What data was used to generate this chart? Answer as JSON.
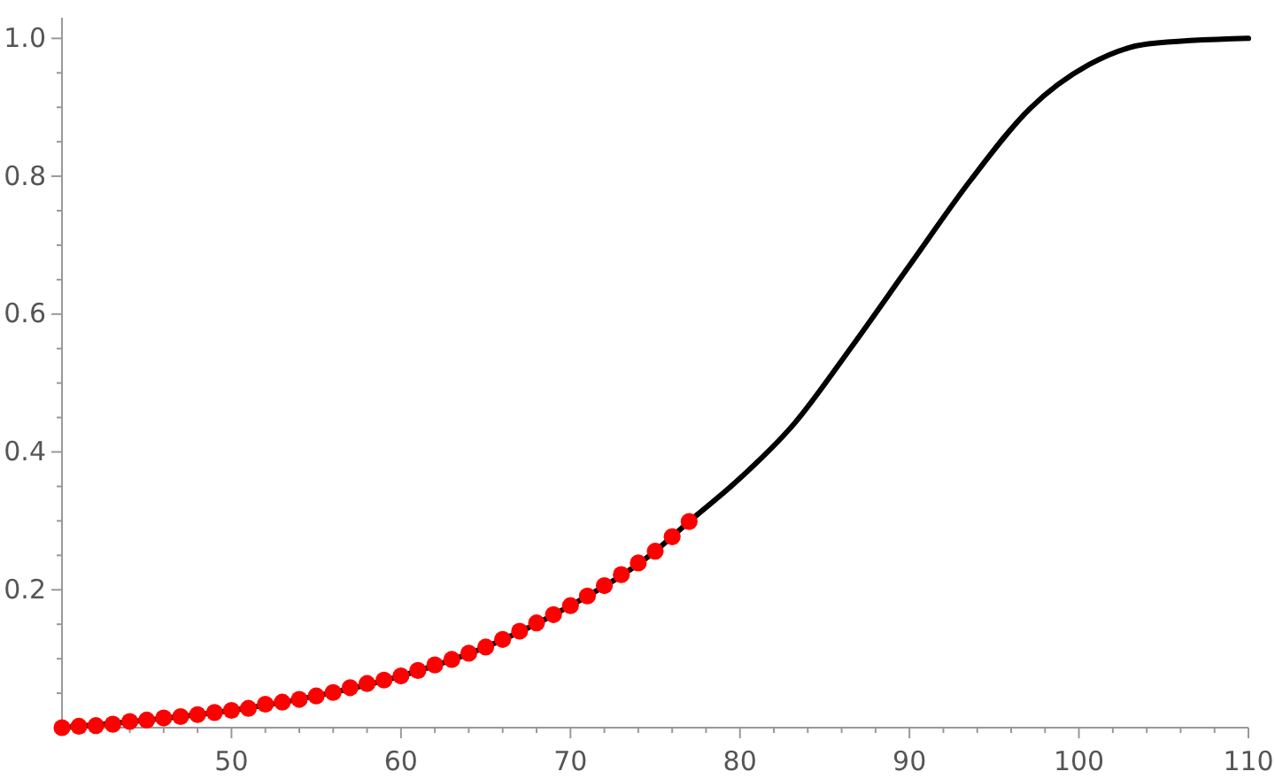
{
  "chart_data": {
    "type": "line",
    "xlim": [
      40,
      110
    ],
    "ylim": [
      0,
      1.03
    ],
    "xticks": [
      {
        "value": 42,
        "label": null
      },
      {
        "value": 44,
        "label": null
      },
      {
        "value": 46,
        "label": null
      },
      {
        "value": 48,
        "label": null
      },
      50,
      {
        "value": 52,
        "label": null
      },
      {
        "value": 54,
        "label": null
      },
      {
        "value": 56,
        "label": null
      },
      {
        "value": 58,
        "label": null
      },
      60,
      {
        "value": 62,
        "label": null
      },
      {
        "value": 64,
        "label": null
      },
      {
        "value": 66,
        "label": null
      },
      {
        "value": 68,
        "label": null
      },
      70,
      {
        "value": 72,
        "label": null
      },
      {
        "value": 74,
        "label": null
      },
      {
        "value": 76,
        "label": null
      },
      {
        "value": 78,
        "label": null
      },
      80,
      {
        "value": 82,
        "label": null
      },
      {
        "value": 84,
        "label": null
      },
      {
        "value": 86,
        "label": null
      },
      {
        "value": 88,
        "label": null
      },
      90,
      {
        "value": 92,
        "label": null
      },
      {
        "value": 94,
        "label": null
      },
      {
        "value": 96,
        "label": null
      },
      {
        "value": 98,
        "label": null
      },
      100,
      {
        "value": 102,
        "label": null
      },
      {
        "value": 104,
        "label": null
      },
      {
        "value": 106,
        "label": null
      },
      {
        "value": 108,
        "label": null
      },
      110
    ],
    "yticks": [
      {
        "value": 0.05,
        "label": null
      },
      {
        "value": 0.1,
        "label": null
      },
      {
        "value": 0.15,
        "label": null
      },
      {
        "value": 0.2,
        "label": "0.2"
      },
      {
        "value": 0.25,
        "label": null
      },
      {
        "value": 0.3,
        "label": null
      },
      {
        "value": 0.35,
        "label": null
      },
      {
        "value": 0.4,
        "label": "0.4"
      },
      {
        "value": 0.45,
        "label": null
      },
      {
        "value": 0.5,
        "label": null
      },
      {
        "value": 0.55,
        "label": null
      },
      {
        "value": 0.6,
        "label": "0.6"
      },
      {
        "value": 0.65,
        "label": null
      },
      {
        "value": 0.7,
        "label": null
      },
      {
        "value": 0.75,
        "label": null
      },
      {
        "value": 0.8,
        "label": "0.8"
      },
      {
        "value": 0.85,
        "label": null
      },
      {
        "value": 0.9,
        "label": null
      },
      {
        "value": 0.95,
        "label": null
      },
      {
        "value": 1.0,
        "label": "1.0"
      }
    ],
    "grid": false,
    "series": [
      {
        "color": "#000000",
        "marker": "none",
        "line_style": "solid",
        "x": [
          40,
          45,
          50,
          55,
          60,
          65,
          70,
          75,
          77,
          79.7,
          83.2,
          86.6,
          90.1,
          93.6,
          97.1,
          100.6,
          104.1,
          110
        ],
        "values": [
          0,
          0.011,
          0.025,
          0.046,
          0.075,
          0.117,
          0.177,
          0.256,
          0.299,
          0.355,
          0.441,
          0.553,
          0.674,
          0.794,
          0.898,
          0.962,
          0.992,
          1.0
        ]
      },
      {
        "type": "scatter",
        "color": "#ff0000",
        "marker": "circle",
        "x": [
          40,
          41,
          42,
          43,
          44,
          45,
          46,
          47,
          48,
          49,
          50,
          51,
          52,
          53,
          54,
          55,
          56,
          57,
          58,
          59,
          60,
          61,
          62,
          63,
          64,
          65,
          66,
          67,
          68,
          69,
          70,
          71,
          72,
          73,
          74,
          75,
          76,
          77
        ],
        "values": [
          0,
          0.002,
          0.003,
          0.005,
          0.009,
          0.011,
          0.014,
          0.016,
          0.019,
          0.022,
          0.025,
          0.028,
          0.034,
          0.037,
          0.041,
          0.046,
          0.051,
          0.058,
          0.064,
          0.069,
          0.075,
          0.083,
          0.091,
          0.099,
          0.108,
          0.117,
          0.128,
          0.14,
          0.152,
          0.164,
          0.177,
          0.191,
          0.206,
          0.222,
          0.239,
          0.256,
          0.277,
          0.299
        ]
      }
    ]
  }
}
